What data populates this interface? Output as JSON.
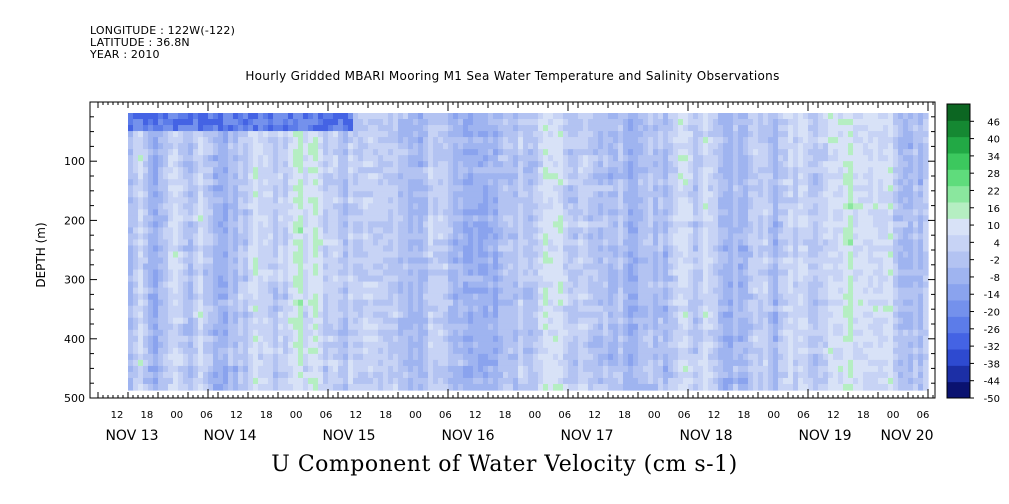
{
  "header": {
    "longitude": "LONGITUDE : 122W(-122)",
    "latitude": "LATITUDE : 36.8N",
    "year": "YEAR : 2010"
  },
  "chart_data": {
    "type": "heatmap",
    "title": "Hourly Gridded MBARI Mooring M1 Sea Water Temperature and Salinity Observations",
    "xlabel": "U Component of Water Velocity (cm s-1)",
    "ylabel": "DEPTH (m)",
    "ylim": [
      500,
      0
    ],
    "y_ticks": [
      100,
      200,
      300,
      400,
      500
    ],
    "x_hour_ticks": [
      "12",
      "18",
      "00",
      "06",
      "12",
      "18",
      "00",
      "06",
      "12",
      "18",
      "00",
      "06",
      "12",
      "18",
      "00",
      "06",
      "12",
      "18",
      "00",
      "06",
      "12",
      "18",
      "00",
      "06",
      "12",
      "18",
      "00",
      "06"
    ],
    "x_day_labels": [
      "NOV 13",
      "NOV 14",
      "NOV 15",
      "NOV 16",
      "NOV 17",
      "NOV 18",
      "NOV 19",
      "NOV 20"
    ],
    "colorbar_ticks": [
      "46",
      "40",
      "34",
      "28",
      "22",
      "16",
      "10",
      "4",
      "-2",
      "-8",
      "-14",
      "-20",
      "-26",
      "-32",
      "-38",
      "-44",
      "-50"
    ],
    "colorbar_range": [
      -50,
      52
    ],
    "grid": false,
    "legend": "right"
  }
}
